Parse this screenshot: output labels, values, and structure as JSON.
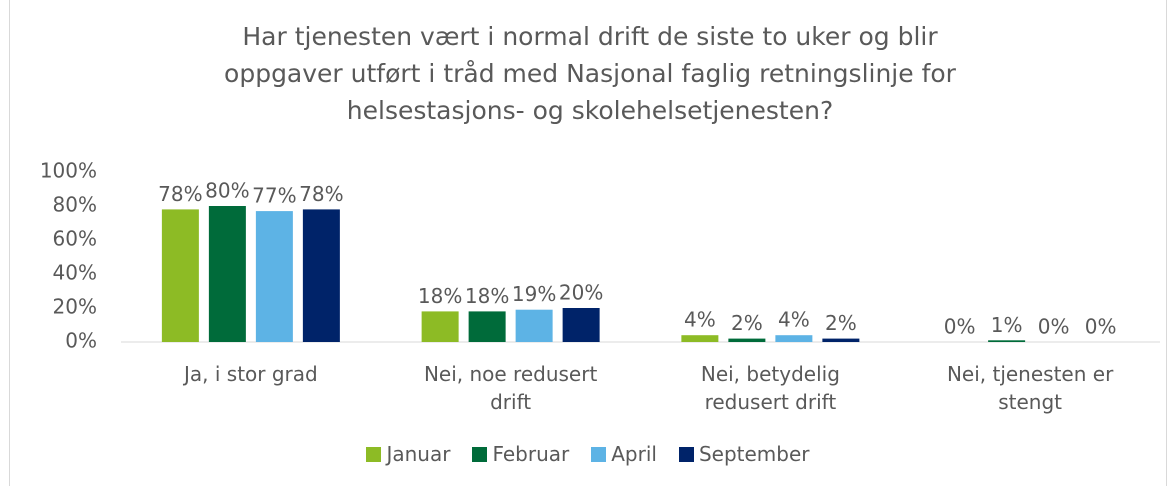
{
  "chart_data": {
    "type": "bar",
    "title": "Har tjenesten vært i normal drift de siste to uker og blir oppgaver utført i tråd med Nasjonal faglig retningslinje for helsestasjons- og skolehelsetjenesten?",
    "categories": [
      "Ja, i stor grad",
      "Nei, noe redusert drift",
      "Nei, betydelig redusert drift",
      "Nei, tjenesten er stengt"
    ],
    "series": [
      {
        "name": "Januar",
        "color": "#8dbb25",
        "values": [
          78,
          18,
          4,
          0
        ],
        "value_labels": [
          "78%",
          "18%",
          "4%",
          "0%"
        ]
      },
      {
        "name": "Februar",
        "color": "#006b3a",
        "values": [
          80,
          18,
          2,
          1
        ],
        "value_labels": [
          "80%",
          "18%",
          "2%",
          "1%"
        ]
      },
      {
        "name": "April",
        "color": "#5db3e5",
        "values": [
          77,
          19,
          4,
          0
        ],
        "value_labels": [
          "77%",
          "19%",
          "4%",
          "0%"
        ]
      },
      {
        "name": "September",
        "color": "#002369",
        "values": [
          78,
          20,
          2,
          0
        ],
        "value_labels": [
          "78%",
          "20%",
          "2%",
          "0%"
        ]
      }
    ],
    "ylim": [
      0,
      100
    ],
    "yticks": [
      {
        "value": 0,
        "label": "0%"
      },
      {
        "value": 20,
        "label": "20%"
      },
      {
        "value": 40,
        "label": "40%"
      },
      {
        "value": 60,
        "label": "60%"
      },
      {
        "value": 80,
        "label": "80%"
      },
      {
        "value": 100,
        "label": "100%"
      }
    ],
    "legend": "bottom"
  }
}
